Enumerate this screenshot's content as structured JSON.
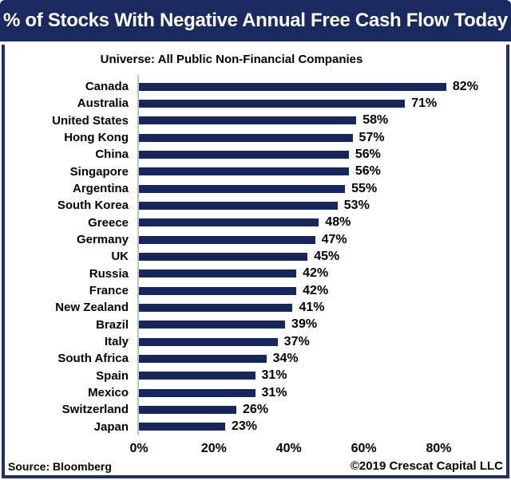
{
  "header": {
    "title": "% of Stocks With Negative Annual Free Cash Flow Today"
  },
  "footer": {
    "source": "Source: Bloomberg",
    "copyright": "©2019 Crescat Capital LLC"
  },
  "colors": {
    "header_bg": "#1B2A5E",
    "frame_border": "#1F2F63",
    "bar": "#17265C",
    "axis_line": "#BFBFBF",
    "text": "#000000",
    "header_text": "#FFFFFF",
    "background": "#FFFFFF"
  },
  "chart_data": {
    "type": "bar",
    "orientation": "horizontal",
    "title": "% of Stocks With Negative Annual Free Cash Flow Today",
    "subtitle": "Universe: All Public Non-Financial Companies",
    "categories": [
      "Canada",
      "Australia",
      "United States",
      "Hong Kong",
      "China",
      "Singapore",
      "Argentina",
      "South Korea",
      "Greece",
      "Germany",
      "UK",
      "Russia",
      "France",
      "New Zealand",
      "Brazil",
      "Italy",
      "South Africa",
      "Spain",
      "Mexico",
      "Switzerland",
      "Japan"
    ],
    "values": [
      82,
      71,
      58,
      57,
      56,
      56,
      55,
      53,
      48,
      47,
      45,
      42,
      42,
      41,
      39,
      37,
      34,
      31,
      31,
      26,
      23
    ],
    "value_suffix": "%",
    "data_labels": true,
    "xlabel": "",
    "ylabel": "",
    "xtick_labels": [
      "0%",
      "20%",
      "40%",
      "60%",
      "80%"
    ],
    "xtick_values": [
      0,
      20,
      40,
      60,
      80
    ],
    "xlim": [
      0,
      98
    ],
    "grid": false,
    "legend": false,
    "source_note": "Source: Bloomberg",
    "credit_note": "©2019 Crescat Capital LLC"
  }
}
